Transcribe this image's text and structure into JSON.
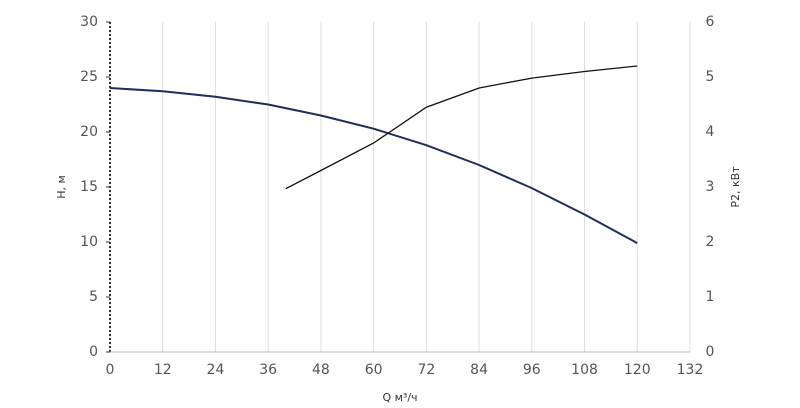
{
  "chart_data": {
    "type": "line",
    "x_label": "Q м³/ч",
    "y_label": "H, м",
    "y2_label": "P2, кВт",
    "xlim": [
      0,
      132
    ],
    "xticks": [
      0,
      12,
      24,
      36,
      48,
      60,
      72,
      84,
      96,
      108,
      120,
      132
    ],
    "ylim": [
      0,
      30
    ],
    "yticks": [
      0,
      5,
      10,
      15,
      20,
      25,
      30
    ],
    "y2lim": [
      0,
      6
    ],
    "y2ticks": [
      0,
      1,
      2,
      3,
      4,
      5,
      6
    ],
    "grid": true,
    "series": [
      {
        "color": "#1f2d5c",
        "x": [
          0,
          12,
          24,
          36,
          48,
          60,
          72,
          84,
          96,
          108,
          120
        ],
        "values": [
          24,
          23.7,
          23.2,
          22.5,
          21.5,
          20.3,
          18.8,
          17.0,
          14.9,
          12.5,
          9.9
        ]
      },
      {
        "color": "#111111",
        "axis": "y2",
        "x": [
          40,
          48,
          60,
          72,
          84,
          96,
          108,
          120
        ],
        "values": [
          2.97,
          3.3,
          3.8,
          4.45,
          4.8,
          4.98,
          5.1,
          5.2
        ]
      }
    ]
  }
}
